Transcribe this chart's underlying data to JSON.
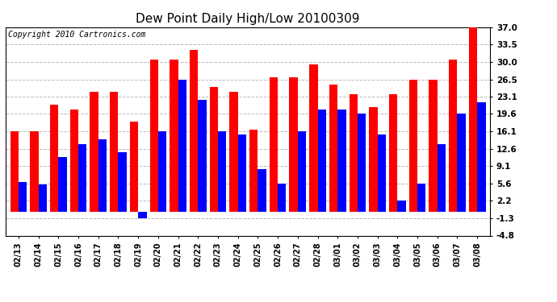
{
  "title": "Dew Point Daily High/Low 20100309",
  "copyright": "Copyright 2010 Cartronics.com",
  "dates": [
    "02/13",
    "02/14",
    "02/15",
    "02/16",
    "02/17",
    "02/18",
    "02/19",
    "02/20",
    "02/21",
    "02/22",
    "02/23",
    "02/24",
    "02/25",
    "02/26",
    "02/27",
    "02/28",
    "03/01",
    "03/02",
    "03/03",
    "03/04",
    "03/05",
    "03/06",
    "03/07",
    "03/08"
  ],
  "highs": [
    16.1,
    16.1,
    21.5,
    20.5,
    24.0,
    24.0,
    18.0,
    30.5,
    30.5,
    32.5,
    25.0,
    24.0,
    16.5,
    27.0,
    27.0,
    29.5,
    25.5,
    23.5,
    21.0,
    23.5,
    26.5,
    26.5,
    30.5,
    37.0
  ],
  "lows": [
    6.0,
    5.5,
    11.0,
    13.5,
    14.5,
    12.0,
    -1.3,
    16.1,
    26.5,
    22.5,
    16.1,
    15.5,
    8.5,
    5.6,
    16.1,
    20.5,
    20.5,
    19.6,
    15.5,
    2.2,
    5.6,
    13.5,
    19.6,
    22.0
  ],
  "yticks": [
    37.0,
    33.5,
    30.0,
    26.5,
    23.1,
    19.6,
    16.1,
    12.6,
    9.1,
    5.6,
    2.2,
    -1.3,
    -4.8
  ],
  "ylim_min": -4.8,
  "ylim_max": 37.0,
  "high_color": "#ff0000",
  "low_color": "#0000ff",
  "grid_color": "#bbbbbb",
  "background_color": "#ffffff",
  "title_fontsize": 11,
  "copyright_fontsize": 7,
  "tick_fontsize": 7,
  "ytick_fontsize": 7.5
}
